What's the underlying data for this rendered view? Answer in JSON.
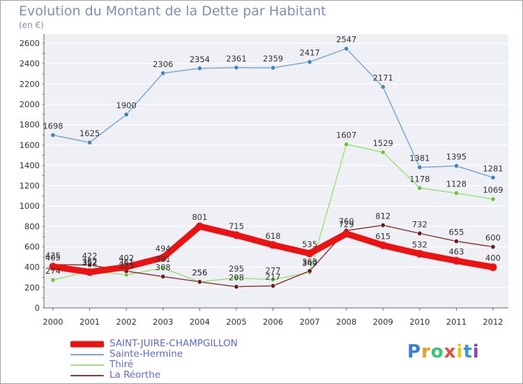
{
  "header": {
    "title": "Evolution du Montant de la Dette par Habitant",
    "subtitle": "(en €)"
  },
  "logo": {
    "letters": [
      "P",
      "r",
      "o",
      "x",
      "i",
      "t",
      "i"
    ],
    "colors": [
      "#3a7bd5",
      "#f39c12",
      "#2ecc71",
      "#e74c3c",
      "#f1c40f",
      "#3498db",
      "#8e44ad"
    ]
  },
  "chart_data": {
    "type": "line",
    "title": "Evolution du Montant de la Dette par Habitant",
    "subtitle": "(en €)",
    "xlabel": "",
    "ylabel": "",
    "categories": [
      "2000",
      "2001",
      "2002",
      "2003",
      "2004",
      "2005",
      "2006",
      "2007",
      "2008",
      "2009",
      "2010",
      "2011",
      "2012"
    ],
    "ylim": [
      0,
      2600
    ],
    "yticks": [
      0,
      200,
      400,
      600,
      800,
      1000,
      1200,
      1400,
      1600,
      1800,
      2000,
      2200,
      2400,
      2600
    ],
    "grid": "horizontal",
    "legend_position": "bottom-left",
    "series": [
      {
        "name": "SAINT-JUIRE-CHAMPGILLON",
        "color": "#ee1111",
        "width": 9,
        "labels": true,
        "values": [
          405,
          352,
          402,
          494,
          801,
          715,
          618,
          535,
          729,
          615,
          532,
          463,
          400
        ]
      },
      {
        "name": "Sainte-Hermine",
        "color": "#7aa7d6",
        "marker": "#3d84c8",
        "width": 1.5,
        "labels": true,
        "values": [
          1698,
          1625,
          1900,
          2306,
          2354,
          2361,
          2359,
          2417,
          2547,
          2171,
          1381,
          1395,
          1281
        ]
      },
      {
        "name": "Thiré",
        "color": "#9ee07a",
        "marker": "#6cc43a",
        "width": 1.5,
        "labels": true,
        "values": [
          274,
          362,
          325,
          391,
          256,
          295,
          277,
          349,
          1607,
          1529,
          1178,
          1128,
          1069
        ]
      },
      {
        "name": "La Réorthe",
        "color": "#8a3a3a",
        "marker": "#6b1a1a",
        "width": 1.5,
        "labels": true,
        "values": [
          425,
          422,
          361,
          308,
          256,
          208,
          217,
          363,
          760,
          812,
          732,
          655,
          600
        ]
      }
    ]
  }
}
